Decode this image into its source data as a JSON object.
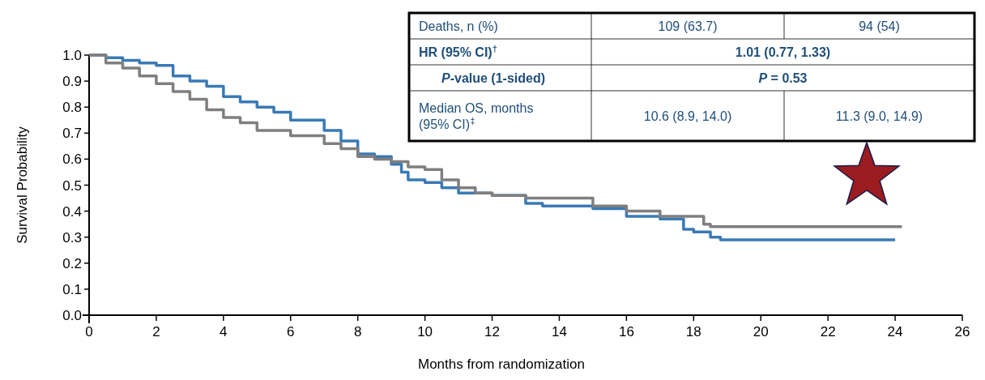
{
  "chart_data": {
    "type": "step",
    "xlabel": "Months from randomization",
    "ylabel": "Survival Probability",
    "xlim": [
      0,
      26
    ],
    "xticks": [
      0,
      2,
      4,
      6,
      8,
      10,
      12,
      14,
      16,
      18,
      20,
      22,
      24,
      26
    ],
    "ylim": [
      0,
      1
    ],
    "yticks": [
      {
        "value": 0,
        "label": "0.0"
      },
      0.1,
      0.2,
      0.3,
      0.4,
      0.5,
      0.6,
      0.7,
      0.8,
      0.9,
      {
        "value": 1,
        "label": "1.0"
      }
    ],
    "grid": false,
    "series": [
      {
        "color": "#3a7ab5",
        "x": [
          0,
          0.5,
          1,
          1.5,
          2,
          2.5,
          3,
          3.5,
          4,
          4.5,
          5,
          5.5,
          6,
          7,
          7.5,
          8,
          8.5,
          9,
          9.3,
          9.5,
          10,
          10.5,
          11,
          12,
          13,
          13.5,
          14,
          15,
          16,
          17,
          17.7,
          18,
          18.5,
          18.8,
          24
        ],
        "values": [
          1,
          0.99,
          0.98,
          0.97,
          0.96,
          0.92,
          0.9,
          0.88,
          0.84,
          0.82,
          0.8,
          0.78,
          0.75,
          0.71,
          0.67,
          0.62,
          0.61,
          0.58,
          0.55,
          0.52,
          0.51,
          0.49,
          0.47,
          0.46,
          0.43,
          0.42,
          0.42,
          0.41,
          0.38,
          0.37,
          0.33,
          0.32,
          0.3,
          0.29,
          0.29
        ]
      },
      {
        "color": "#7f7f7f",
        "x": [
          0,
          0.5,
          1,
          1.5,
          2,
          2.5,
          3,
          3.5,
          4,
          4.5,
          5,
          6,
          7,
          7.5,
          8,
          8.5,
          9,
          9.5,
          10,
          10.5,
          11,
          11.5,
          12,
          13,
          14,
          15,
          16,
          17,
          18,
          18.3,
          18.5,
          24.2
        ],
        "values": [
          1,
          0.97,
          0.95,
          0.92,
          0.89,
          0.86,
          0.83,
          0.79,
          0.76,
          0.74,
          0.71,
          0.69,
          0.66,
          0.64,
          0.61,
          0.6,
          0.59,
          0.57,
          0.56,
          0.52,
          0.49,
          0.47,
          0.46,
          0.45,
          0.45,
          0.42,
          0.4,
          0.38,
          0.38,
          0.35,
          0.34,
          0.34
        ]
      }
    ],
    "annotations": [
      "Deaths, n (%)",
      "109 (63.7)",
      "94 (54)",
      "HR (95% CI)$^{†}$",
      "1.01 (0.77, 1.33)",
      "P-value (1-sided)",
      "P = 0.53",
      "Median OS, months\n(95% CI)$^{‡}$",
      "10.6 (8.9, 14.0)",
      "11.3 (9.0, 14.9)"
    ]
  }
}
